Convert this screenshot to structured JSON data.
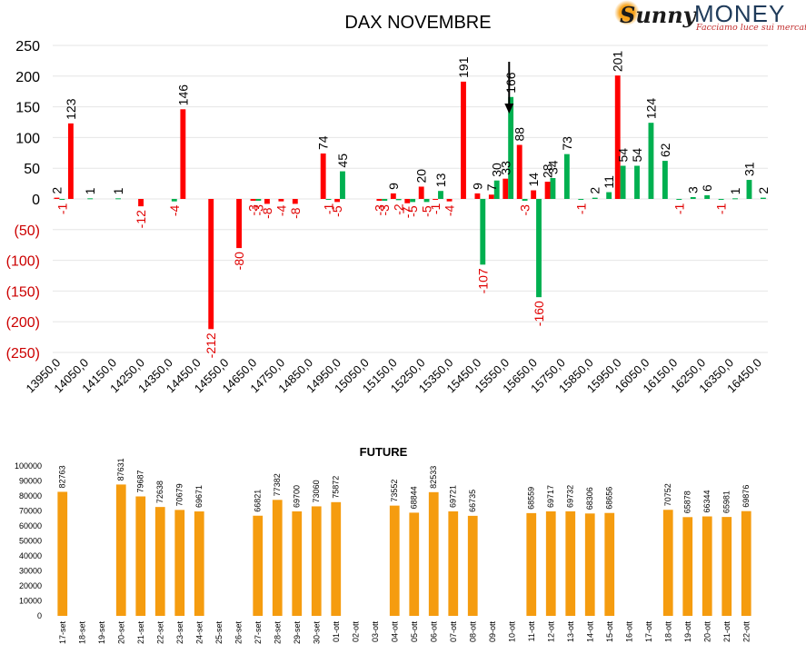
{
  "logo": {
    "script_text": "Sunny",
    "brand_text": "MONEY",
    "tagline": "Facciamo luce sui mercati"
  },
  "colors": {
    "positive": "#00b050",
    "negative": "#ff0000",
    "negative_label": "#e00000",
    "future_bar": "#f59c0f",
    "arrow": "#000000"
  },
  "chart_data": [
    {
      "type": "bar",
      "title": "DAX NOVEMBRE",
      "ylim": [
        -250,
        250
      ],
      "yticks": [
        250,
        200,
        150,
        100,
        50,
        0,
        -50,
        -100,
        -150,
        -200,
        -250
      ],
      "ytick_labels": [
        "250",
        "200",
        "150",
        "100",
        "50",
        "0",
        "(50)",
        "(100)",
        "(150)",
        "(200)",
        "(250)"
      ],
      "grid": true,
      "legend": "none",
      "x_labels": [
        "13950,0",
        "14050,0",
        "14150,0",
        "14250,0",
        "14350,0",
        "14450,0",
        "14550,0",
        "14650,0",
        "14750,0",
        "14850,0",
        "14950,0",
        "15050,0",
        "15150,0",
        "15250,0",
        "15350,0",
        "15450,0",
        "15550,0",
        "15650,0",
        "15750,0",
        "15850,0",
        "15950,0",
        "16050,0",
        "16150,0",
        "16250,0",
        "16350,0",
        "16450,0"
      ],
      "strikes": [
        13950,
        14000,
        14050,
        14100,
        14150,
        14200,
        14250,
        14300,
        14350,
        14400,
        14450,
        14500,
        14550,
        14600,
        14650,
        14700,
        14750,
        14800,
        14850,
        14900,
        14950,
        15000,
        15050,
        15100,
        15150,
        15200,
        15250,
        15300,
        15350,
        15400,
        15450,
        15500,
        15550,
        15600,
        15650,
        15700,
        15750,
        15800,
        15850,
        15900,
        15950,
        16000,
        16050,
        16100,
        16150,
        16200,
        16250,
        16300,
        16350,
        16400,
        16450
      ],
      "arrow_at": 15550,
      "series": [
        {
          "color": "#ff0000",
          "label_color": "#e00000",
          "values": [
            2,
            123,
            0,
            0,
            0,
            0,
            -12,
            0,
            0,
            146,
            0,
            -212,
            0,
            -80,
            -3,
            -8,
            -4,
            -8,
            0,
            74,
            -5,
            0,
            0,
            -3,
            9,
            -7,
            20,
            -1,
            -4,
            191,
            9,
            7,
            33,
            88,
            14,
            28,
            0,
            0,
            0,
            0,
            201,
            0,
            0,
            0,
            0,
            0,
            0,
            0,
            0,
            0,
            0
          ]
        },
        {
          "color": "#00b050",
          "label_color": "#000000",
          "values": [
            -1,
            0,
            1,
            0,
            1,
            0,
            0,
            0,
            -4,
            0,
            0,
            0,
            0,
            0,
            -3,
            0,
            0,
            0,
            0,
            -1,
            45,
            0,
            0,
            -3,
            -2,
            -5,
            -5,
            13,
            0,
            0,
            -107,
            30,
            166,
            -3,
            -160,
            34,
            73,
            -1,
            2,
            11,
            54,
            54,
            124,
            62,
            -1,
            3,
            6,
            -1,
            1,
            31,
            2
          ]
        }
      ],
      "hidden_zero_labels": true
    },
    {
      "type": "bar",
      "title": "FUTURE",
      "ylim": [
        0,
        100000
      ],
      "yticks": [
        0,
        10000,
        20000,
        30000,
        40000,
        50000,
        60000,
        70000,
        80000,
        90000,
        100000
      ],
      "grid": false,
      "legend": "none",
      "categories": [
        "17-set",
        "18-set",
        "19-set",
        "20-set",
        "21-set",
        "22-set",
        "23-set",
        "24-set",
        "25-set",
        "26-set",
        "27-set",
        "28-set",
        "29-set",
        "30-set",
        "01-ott",
        "02-ott",
        "03-ott",
        "04-ott",
        "05-ott",
        "06-ott",
        "07-ott",
        "08-ott",
        "09-ott",
        "10-ott",
        "11-ott",
        "12-ott",
        "13-ott",
        "14-ott",
        "15-ott",
        "16-ott",
        "17-ott",
        "18-ott",
        "19-ott",
        "20-ott",
        "21-ott",
        "22-ott"
      ],
      "values": [
        82763,
        null,
        null,
        87631,
        79687,
        72638,
        70679,
        69671,
        null,
        null,
        66821,
        77382,
        69700,
        73060,
        75872,
        null,
        null,
        73552,
        68844,
        82533,
        69721,
        66735,
        null,
        null,
        68559,
        69717,
        69732,
        68306,
        68656,
        null,
        null,
        70752,
        65878,
        66344,
        65981,
        69876
      ],
      "color": "#f59c0f"
    }
  ]
}
